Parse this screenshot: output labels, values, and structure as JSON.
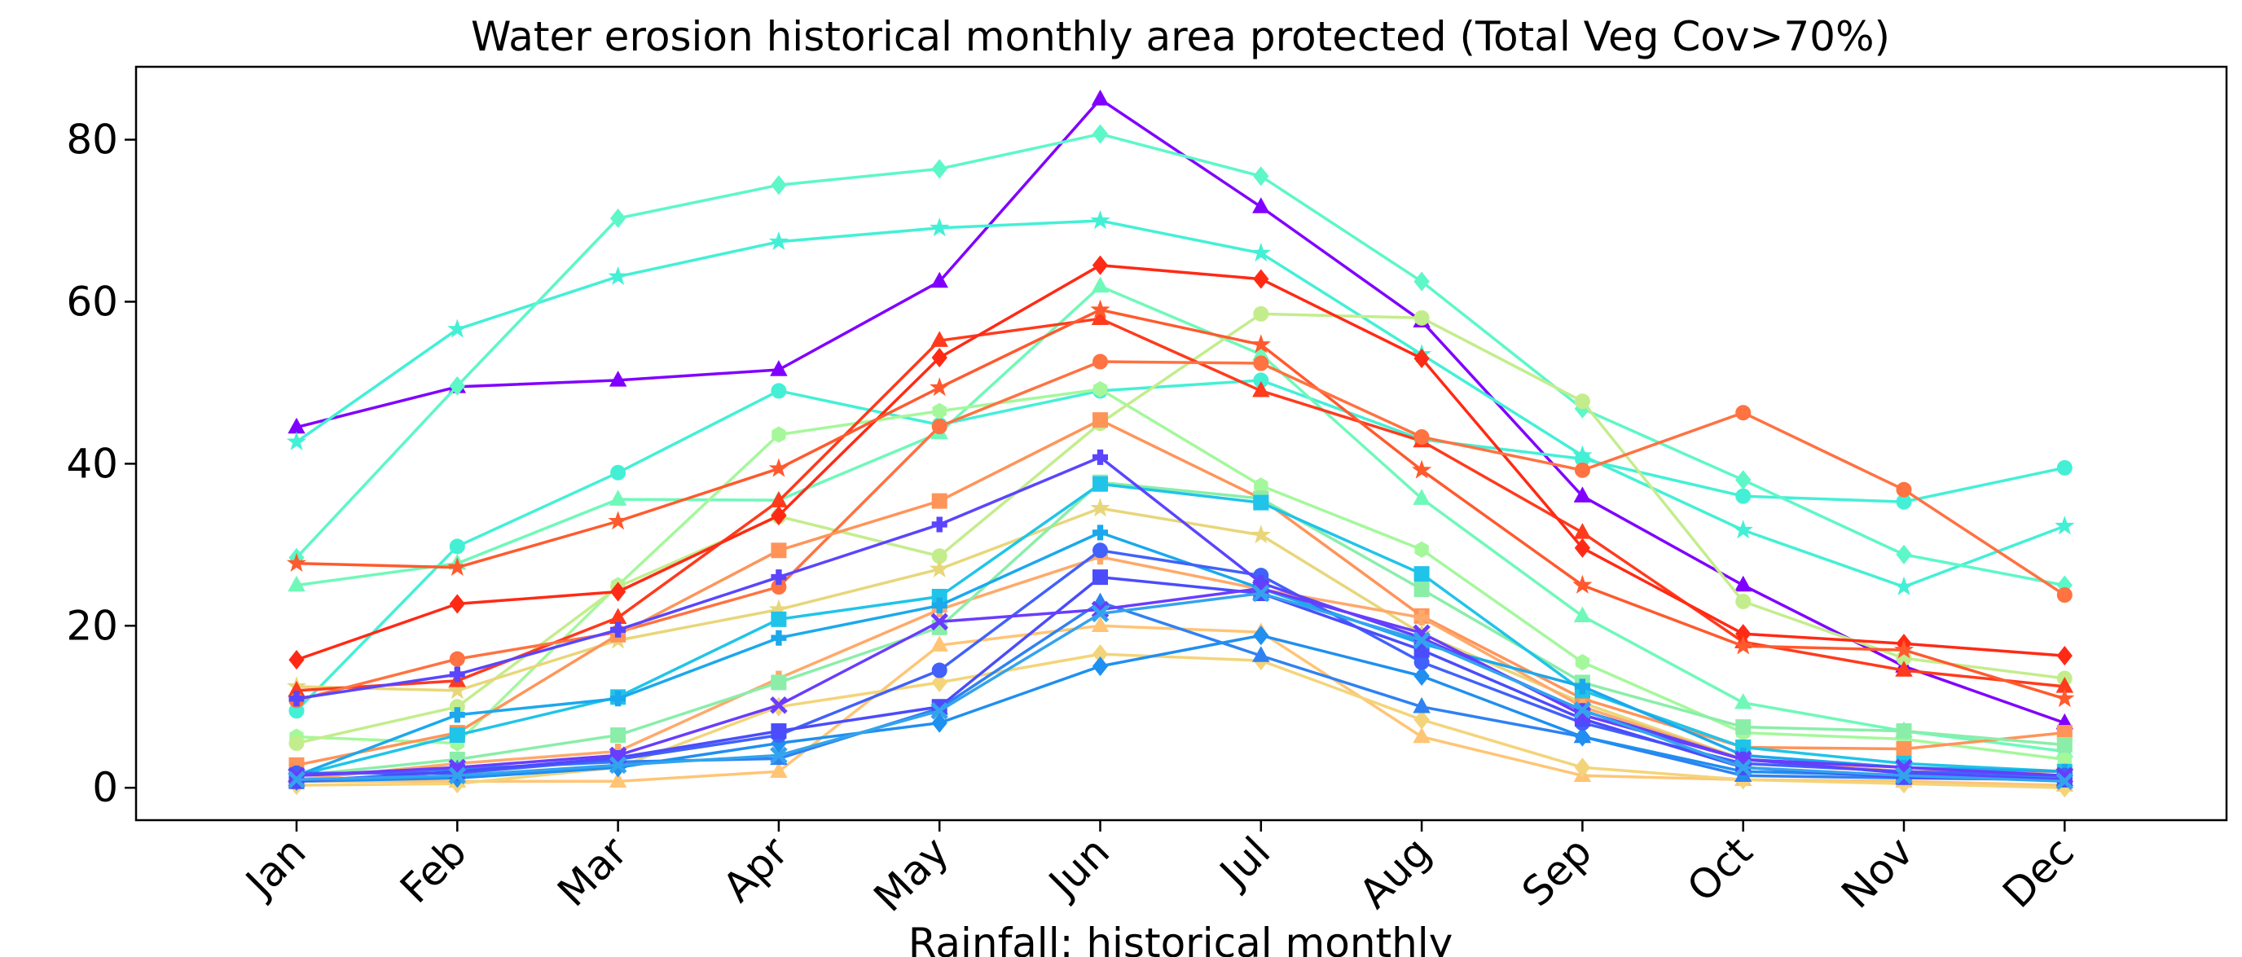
{
  "chart_data": {
    "type": "line",
    "title": "Water erosion historical monthly area protected (Total Veg Cov>70%)",
    "xlabel": "Rainfall: historical monthly",
    "ylabel": "",
    "categories": [
      "Jan",
      "Feb",
      "Mar",
      "Apr",
      "May",
      "Jun",
      "Jul",
      "Aug",
      "Sep",
      "Oct",
      "Nov",
      "Dec"
    ],
    "ylim": [
      -4,
      89
    ],
    "yticks": [
      0,
      20,
      40,
      60,
      80
    ],
    "grid": false,
    "series": [
      {
        "color": "#8000ff",
        "marker": "triangle",
        "values": [
          44.5,
          49.5,
          50.3,
          51.6,
          62.5,
          85,
          71.7,
          57.6,
          36,
          25,
          15,
          8
        ]
      },
      {
        "color": "#43f0d6",
        "marker": "circle",
        "values": [
          9.5,
          29.8,
          38.9,
          49,
          44.8,
          49,
          50.3,
          43,
          40.6,
          36,
          35.3,
          39.5
        ]
      },
      {
        "color": "#43f0d6",
        "marker": "star",
        "values": [
          42.7,
          56.6,
          63.1,
          67.4,
          69.1,
          70,
          66,
          53.5,
          41,
          31.8,
          24.8,
          32.3
        ]
      },
      {
        "color": "#5df7c8",
        "marker": "diamond",
        "values": [
          28.4,
          49.6,
          70.3,
          74.4,
          76.4,
          80.7,
          75.5,
          62.5,
          46.8,
          38,
          28.8,
          25
        ]
      },
      {
        "color": "#6ff9b9",
        "marker": "triangle",
        "values": [
          25,
          27.7,
          35.6,
          35.5,
          43.8,
          61.9,
          53.5,
          35.7,
          21.2,
          10.5,
          7,
          4.5
        ]
      },
      {
        "color": "#a4f89b",
        "marker": "hexagon",
        "values": [
          6.3,
          5.5,
          25,
          43.6,
          46.5,
          49.2,
          37.3,
          29.4,
          15.5,
          6.8,
          6,
          3.5
        ]
      },
      {
        "color": "#c3ed8c",
        "marker": "circle",
        "values": [
          5.5,
          10,
          24.8,
          33.5,
          28.6,
          45,
          58.5,
          58,
          47.7,
          23,
          16,
          13.5
        ]
      },
      {
        "color": "#e8d67a",
        "marker": "star",
        "values": [
          12.5,
          12,
          18.2,
          22,
          27,
          34.5,
          31.2,
          19,
          10.5,
          3.5,
          2,
          2
        ]
      },
      {
        "color": "#ff3a1d",
        "marker": "triangle",
        "values": [
          12,
          13.2,
          21,
          35.4,
          55.2,
          57.9,
          49,
          42.8,
          31.5,
          18,
          14.5,
          12.5
        ]
      },
      {
        "color": "#ff2a15",
        "marker": "diamond",
        "values": [
          15.8,
          22.7,
          24.2,
          33.6,
          53.1,
          64.5,
          62.8,
          53,
          29.6,
          19,
          17.8,
          16.3
        ]
      },
      {
        "color": "#ff5a2e",
        "marker": "star",
        "values": [
          27.7,
          27.2,
          32.9,
          39.4,
          49.4,
          59,
          54.7,
          39.2,
          25,
          17.5,
          17,
          11
        ]
      },
      {
        "color": "#ff7241",
        "marker": "circle",
        "values": [
          10.8,
          15.9,
          19.2,
          24.8,
          44.6,
          52.6,
          52.4,
          43.3,
          39.2,
          46.3,
          36.8,
          23.8
        ]
      },
      {
        "color": "#ff9459",
        "marker": "square",
        "values": [
          2.8,
          6.8,
          18.9,
          29.3,
          35.4,
          45.4,
          35.7,
          21.2,
          11,
          5,
          4.8,
          6.8
        ]
      },
      {
        "color": "#ffa96a",
        "marker": "plus",
        "values": [
          1,
          3,
          4.5,
          13.5,
          22,
          28.5,
          24.5,
          21,
          10,
          3.5,
          2,
          2
        ]
      },
      {
        "color": "#ffc575",
        "marker": "triangle",
        "values": [
          0.8,
          0.8,
          0.8,
          2,
          17.6,
          20,
          19.2,
          6.3,
          1.5,
          1,
          0.8,
          0.3
        ]
      },
      {
        "color": "#f4d47a",
        "marker": "diamond",
        "values": [
          0.3,
          0.5,
          2.5,
          10,
          13,
          16.5,
          15.7,
          8.4,
          2.5,
          1,
          0.5,
          0
        ]
      },
      {
        "color": "#8aeea9",
        "marker": "square",
        "values": [
          1.5,
          3.5,
          6.5,
          13,
          19.8,
          37.7,
          35.7,
          24.5,
          13,
          7.5,
          7,
          5.3
        ]
      },
      {
        "color": "#20c4e8",
        "marker": "square",
        "values": [
          1.5,
          6.5,
          11.2,
          20.8,
          23.6,
          37.5,
          35.2,
          26.4,
          12,
          5,
          3,
          2
        ]
      },
      {
        "color": "#1ba8ec",
        "marker": "plus",
        "values": [
          1.5,
          9,
          11,
          18.5,
          22.5,
          31.5,
          24.6,
          17.8,
          12.5,
          4,
          2.5,
          2
        ]
      },
      {
        "color": "#2f81f2",
        "marker": "triangle",
        "values": [
          1.5,
          2.3,
          3.2,
          3.6,
          9.8,
          22.9,
          16.3,
          10,
          6.3,
          1.5,
          1.2,
          1
        ]
      },
      {
        "color": "#1f8ff0",
        "marker": "diamond",
        "values": [
          0.8,
          1.2,
          2.5,
          5.5,
          8,
          15,
          18.8,
          13.8,
          6.3,
          2,
          1.5,
          1.3
        ]
      },
      {
        "color": "#4161fa",
        "marker": "circle",
        "values": [
          1.8,
          1.8,
          3.5,
          6.5,
          14.5,
          29.3,
          26.2,
          15.5,
          8,
          3,
          2,
          1.5
        ]
      },
      {
        "color": "#5a45fd",
        "marker": "plus",
        "values": [
          11,
          14,
          19.5,
          26,
          32.5,
          40.8,
          25.3,
          18.5,
          9.5,
          3.5,
          1.8,
          1
        ]
      },
      {
        "color": "#4b4cfb",
        "marker": "square",
        "values": [
          0.8,
          2,
          3.7,
          7,
          10,
          26,
          24,
          17,
          8.5,
          2.5,
          1.3,
          1
        ]
      },
      {
        "color": "#6a3cfe",
        "marker": "x",
        "values": [
          1.5,
          2.5,
          4,
          10.2,
          20.5,
          22,
          24.6,
          19.1,
          9,
          3.5,
          2.5,
          1.5
        ]
      },
      {
        "color": "#33a3ee",
        "marker": "x",
        "values": [
          1,
          1.5,
          2.8,
          4,
          9.5,
          21.5,
          24,
          18.2,
          9.6,
          2.5,
          1.5,
          0.8
        ]
      }
    ]
  }
}
